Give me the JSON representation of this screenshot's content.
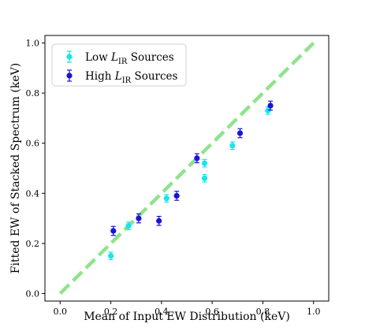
{
  "chart_data": {
    "type": "scatter",
    "xlabel": "Mean of Input EW Distribution (keV)",
    "ylabel": "Fitted EW of Stacked Spectrum (keV)",
    "xlim": [
      -0.06,
      1.06
    ],
    "ylim": [
      -0.03,
      1.03
    ],
    "x_ticks": [
      "0.0",
      "0.2",
      "0.4",
      "0.6",
      "0.8",
      "1.0"
    ],
    "y_ticks": [
      "0.0",
      "0.2",
      "0.4",
      "0.6",
      "0.8",
      "1.0"
    ],
    "legend_position": "top-left",
    "reference_line": {
      "x": [
        0,
        1
      ],
      "y": [
        0,
        1
      ],
      "style": "dashed",
      "color": "#90e38c"
    },
    "series": [
      {
        "name_prefix": "Low ",
        "name_symbol": "L",
        "name_subscript": "IR",
        "name_suffix": " Sources",
        "color": "#19e6e6",
        "points": [
          {
            "x": 0.2,
            "y": 0.15,
            "err": 0.015
          },
          {
            "x": 0.27,
            "y": 0.27,
            "err": 0.015
          },
          {
            "x": 0.42,
            "y": 0.38,
            "err": 0.015
          },
          {
            "x": 0.57,
            "y": 0.46,
            "err": 0.015
          },
          {
            "x": 0.57,
            "y": 0.52,
            "err": 0.015
          },
          {
            "x": 0.68,
            "y": 0.59,
            "err": 0.015
          },
          {
            "x": 0.82,
            "y": 0.73,
            "err": 0.015
          }
        ]
      },
      {
        "name_prefix": "High ",
        "name_symbol": "L",
        "name_subscript": "IR",
        "name_suffix": " Sources",
        "color": "#1a14d6",
        "points": [
          {
            "x": 0.21,
            "y": 0.25,
            "err": 0.018
          },
          {
            "x": 0.31,
            "y": 0.3,
            "err": 0.018
          },
          {
            "x": 0.39,
            "y": 0.29,
            "err": 0.018
          },
          {
            "x": 0.46,
            "y": 0.39,
            "err": 0.018
          },
          {
            "x": 0.54,
            "y": 0.54,
            "err": 0.018
          },
          {
            "x": 0.71,
            "y": 0.64,
            "err": 0.018
          },
          {
            "x": 0.83,
            "y": 0.75,
            "err": 0.018
          }
        ]
      }
    ]
  }
}
